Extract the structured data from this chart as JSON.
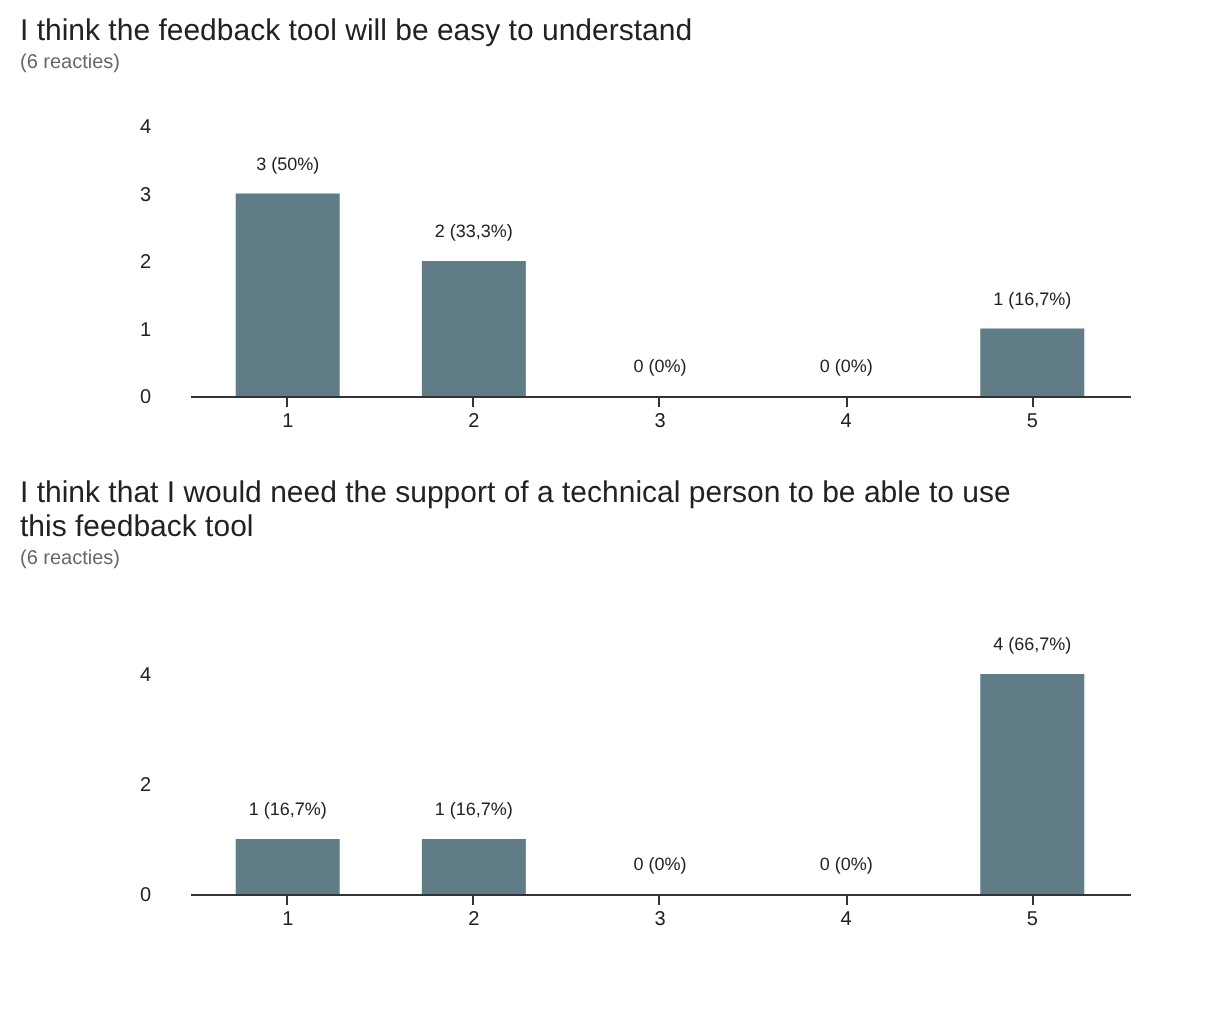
{
  "chart_data": [
    {
      "type": "bar",
      "title": "I think the feedback tool will be easy to understand",
      "subtitle": "(6 reacties)",
      "categories": [
        "1",
        "2",
        "3",
        "4",
        "5"
      ],
      "values": [
        3,
        2,
        0,
        0,
        1
      ],
      "value_labels": [
        "3 (50%)",
        "2 (33,3%)",
        "0 (0%)",
        "0 (0%)",
        "1 (16,7%)"
      ],
      "color": "#607d87",
      "ylim": [
        0,
        4
      ],
      "yticks": [
        0,
        1,
        2,
        3,
        4
      ],
      "grid": false
    },
    {
      "type": "bar",
      "title": "I think that I would need the support of a technical person to be able to use this feedback tool",
      "subtitle": "(6 reacties)",
      "categories": [
        "1",
        "2",
        "3",
        "4",
        "5"
      ],
      "values": [
        1,
        1,
        0,
        0,
        4
      ],
      "value_labels": [
        "1 (16,7%)",
        "1 (16,7%)",
        "0 (0%)",
        "0 (0%)",
        "4 (66,7%)"
      ],
      "color": "#607d87",
      "ylim": [
        0,
        4
      ],
      "yticks": [
        0,
        2,
        4
      ],
      "grid": false
    }
  ]
}
